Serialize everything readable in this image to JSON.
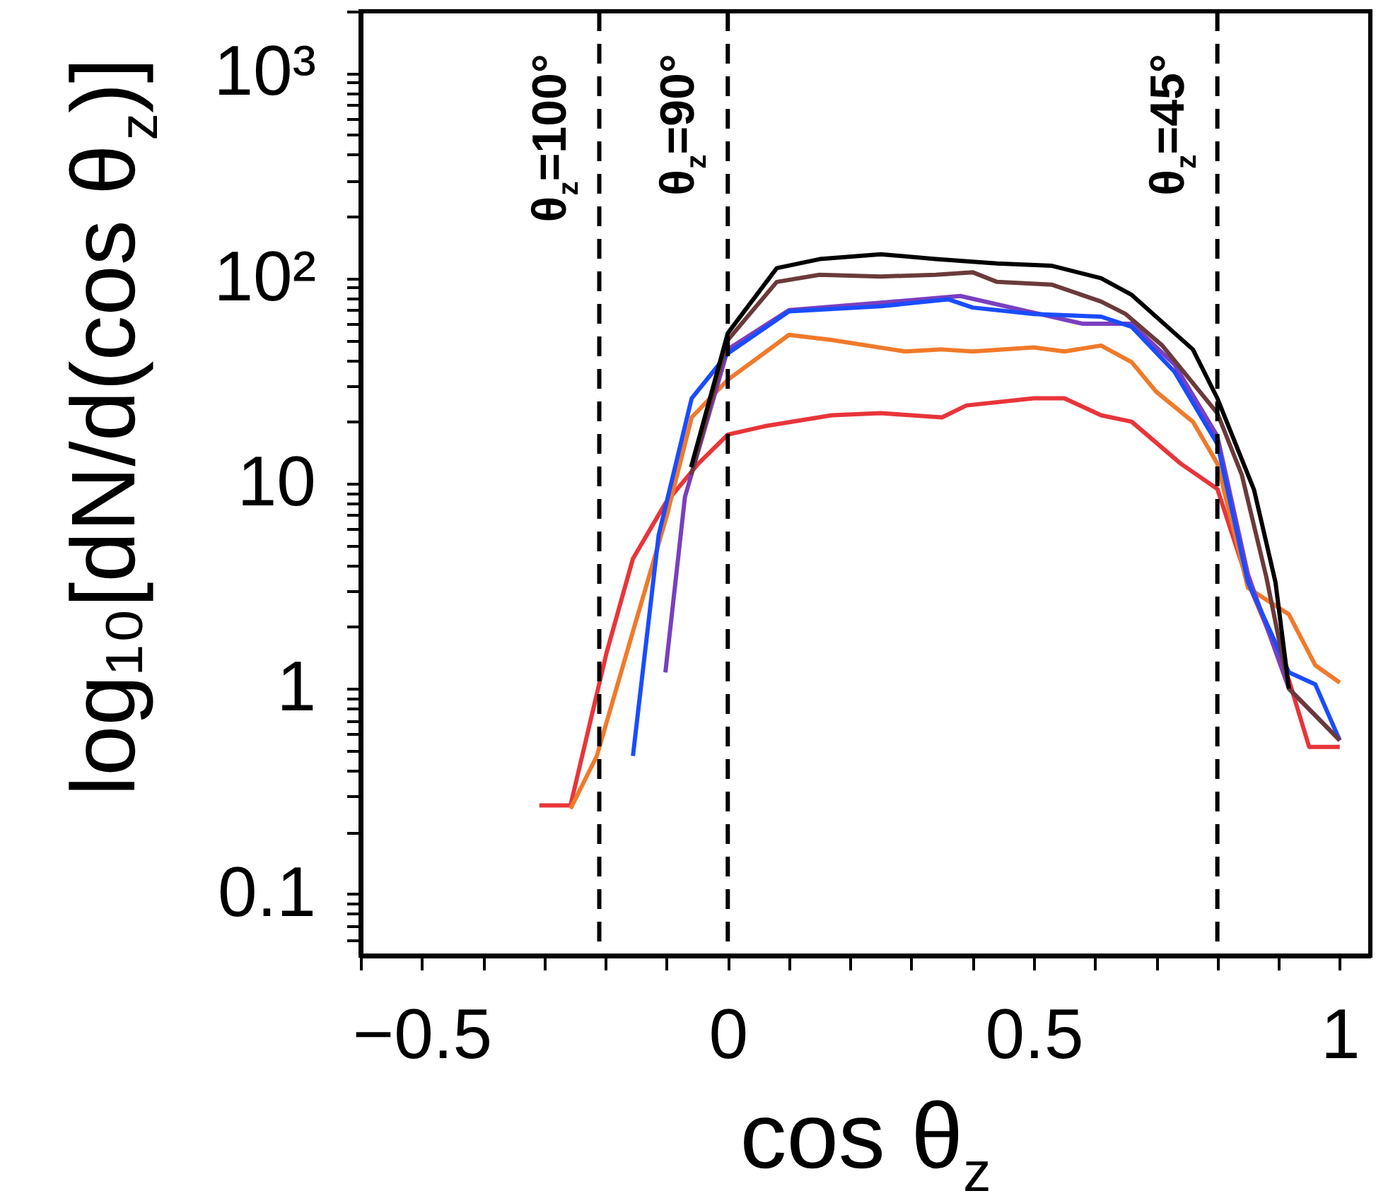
{
  "chart_data": {
    "type": "line",
    "xlabel": "cos θ$_{z}$",
    "ylabel": "log₁₀[dN/d(cos θ$_{z}$)]",
    "log": "y",
    "line_style": "solid",
    "marker": "none",
    "xlim": [
      -0.6,
      1.05
    ],
    "ylim": [
      0.05,
      2000
    ],
    "xticks": [
      {
        "value": -0.6,
        "label": null
      },
      {
        "value": -0.5,
        "label": "−0.5"
      },
      {
        "value": -0.4,
        "label": null
      },
      {
        "value": -0.3,
        "label": null
      },
      {
        "value": -0.2,
        "label": null
      },
      {
        "value": -0.1,
        "label": null
      },
      0,
      {
        "value": 0.1,
        "label": null
      },
      {
        "value": 0.2,
        "label": null
      },
      {
        "value": 0.3,
        "label": null
      },
      {
        "value": 0.4,
        "label": null
      },
      0.5,
      {
        "value": 0.6,
        "label": null
      },
      {
        "value": 0.7,
        "label": null
      },
      {
        "value": 0.8,
        "label": null
      },
      {
        "value": 0.9,
        "label": null
      },
      1
    ],
    "yticks": [
      {
        "value": 0.06,
        "label": null
      },
      {
        "value": 0.07,
        "label": null
      },
      {
        "value": 0.08,
        "label": null
      },
      {
        "value": 0.09,
        "label": null
      },
      {
        "value": 0.1,
        "label": "0.1"
      },
      {
        "value": 0.2,
        "label": null
      },
      {
        "value": 0.3,
        "label": null
      },
      {
        "value": 0.4,
        "label": null
      },
      {
        "value": 0.5,
        "label": null
      },
      {
        "value": 0.6,
        "label": null
      },
      {
        "value": 0.7,
        "label": null
      },
      {
        "value": 0.8,
        "label": null
      },
      {
        "value": 0.9,
        "label": null
      },
      {
        "value": 1,
        "label": "1"
      },
      {
        "value": 2,
        "label": null
      },
      {
        "value": 3,
        "label": null
      },
      {
        "value": 4,
        "label": null
      },
      {
        "value": 5,
        "label": null
      },
      {
        "value": 6,
        "label": null
      },
      {
        "value": 7,
        "label": null
      },
      {
        "value": 8,
        "label": null
      },
      {
        "value": 9,
        "label": null
      },
      {
        "value": 10,
        "label": "10"
      },
      {
        "value": 20,
        "label": null
      },
      {
        "value": 30,
        "label": null
      },
      {
        "value": 40,
        "label": null
      },
      {
        "value": 50,
        "label": null
      },
      {
        "value": 60,
        "label": null
      },
      {
        "value": 70,
        "label": null
      },
      {
        "value": 80,
        "label": null
      },
      {
        "value": 90,
        "label": null
      },
      {
        "value": 100,
        "label": "10²"
      },
      {
        "value": 200,
        "label": null
      },
      {
        "value": 300,
        "label": null
      },
      {
        "value": 400,
        "label": null
      },
      {
        "value": 500,
        "label": null
      },
      {
        "value": 600,
        "label": null
      },
      {
        "value": 700,
        "label": null
      },
      {
        "value": 800,
        "label": null
      },
      {
        "value": 900,
        "label": null
      },
      {
        "value": 1000,
        "label": "10³"
      },
      {
        "value": 2000,
        "label": null
      }
    ],
    "ref_lines": [
      {
        "axis": "x",
        "value": -0.21,
        "color": "#000000",
        "line_style": "dashed"
      },
      {
        "axis": "x",
        "value": 0,
        "color": "#000000",
        "line_style": "dashed"
      },
      {
        "axis": "x",
        "value": 0.8,
        "color": "#000000",
        "line_style": "dashed"
      }
    ],
    "annotations": [
      "θ$_{z}$=100°",
      "θ$_{z}$=90°",
      "θ$_{z}$=45°"
    ],
    "series": [
      {
        "color": "#e8353a",
        "x": [
          -0.308,
          -0.257,
          -0.198,
          -0.155,
          -0.102,
          -0.048,
          0,
          0.06,
          0.17,
          0.25,
          0.35,
          0.39,
          0.5,
          0.55,
          0.61,
          0.66,
          0.74,
          0.8,
          0.85,
          0.917,
          0.95,
          1.0
        ],
        "values": [
          0.27,
          0.27,
          1.5,
          4.3,
          8,
          12.5,
          17.3,
          19,
          21.5,
          22,
          21,
          24,
          26,
          26,
          21.5,
          20,
          12.5,
          9.4,
          3.3,
          1.1,
          0.52,
          0.52
        ]
      },
      {
        "color": "#f07a2a",
        "x": [
          -0.257,
          -0.214,
          -0.155,
          -0.1,
          -0.059,
          0,
          0.1,
          0.17,
          0.29,
          0.35,
          0.4,
          0.5,
          0.55,
          0.61,
          0.66,
          0.7,
          0.76,
          0.8,
          0.85,
          0.917,
          0.96,
          1.0
        ],
        "values": [
          0.26,
          0.47,
          1.9,
          6.9,
          21,
          32,
          53,
          50,
          44,
          45,
          44,
          46,
          44,
          47,
          39,
          28,
          20,
          12.5,
          3.1,
          2.3,
          1.3,
          1.07
        ]
      },
      {
        "color": "#7a3fbf",
        "x": [
          -0.102,
          -0.07,
          0,
          0.1,
          0.25,
          0.38,
          0.5,
          0.58,
          0.66,
          0.73,
          0.8,
          0.85,
          0.917,
          1.0
        ],
        "values": [
          1.2,
          8.6,
          45,
          70,
          76,
          82,
          68,
          60,
          60,
          38,
          17,
          3.6,
          1.0,
          0.56
        ]
      },
      {
        "color": "#1a4cff",
        "x": [
          -0.155,
          -0.113,
          -0.059,
          0,
          0.1,
          0.25,
          0.36,
          0.4,
          0.5,
          0.61,
          0.66,
          0.73,
          0.8,
          0.85,
          0.917,
          0.96,
          1.0
        ],
        "values": [
          0.47,
          5.6,
          26,
          43,
          69,
          73,
          79,
          72,
          67,
          65,
          58,
          35,
          15.6,
          3.3,
          1.2,
          1.05,
          0.56
        ]
      },
      {
        "color": "#6b3a3a",
        "x": [
          -0.06,
          0,
          0.08,
          0.15,
          0.25,
          0.34,
          0.4,
          0.44,
          0.53,
          0.61,
          0.65,
          0.71,
          0.8,
          0.84,
          0.88,
          0.917,
          1.0
        ],
        "values": [
          11,
          50,
          96,
          104,
          102,
          104,
          107,
          96,
          93,
          77,
          67,
          47,
          22,
          11,
          3.5,
          1.0,
          0.56
        ]
      },
      {
        "color": "#000000",
        "x": [
          -0.06,
          0,
          0.08,
          0.15,
          0.25,
          0.34,
          0.44,
          0.53,
          0.61,
          0.66,
          0.76,
          0.8,
          0.86,
          0.895,
          0.917
        ],
        "values": [
          12,
          54,
          112,
          124,
          131,
          124,
          118,
          115,
          100,
          83,
          45,
          26,
          9.3,
          3.3,
          1
        ]
      }
    ]
  }
}
